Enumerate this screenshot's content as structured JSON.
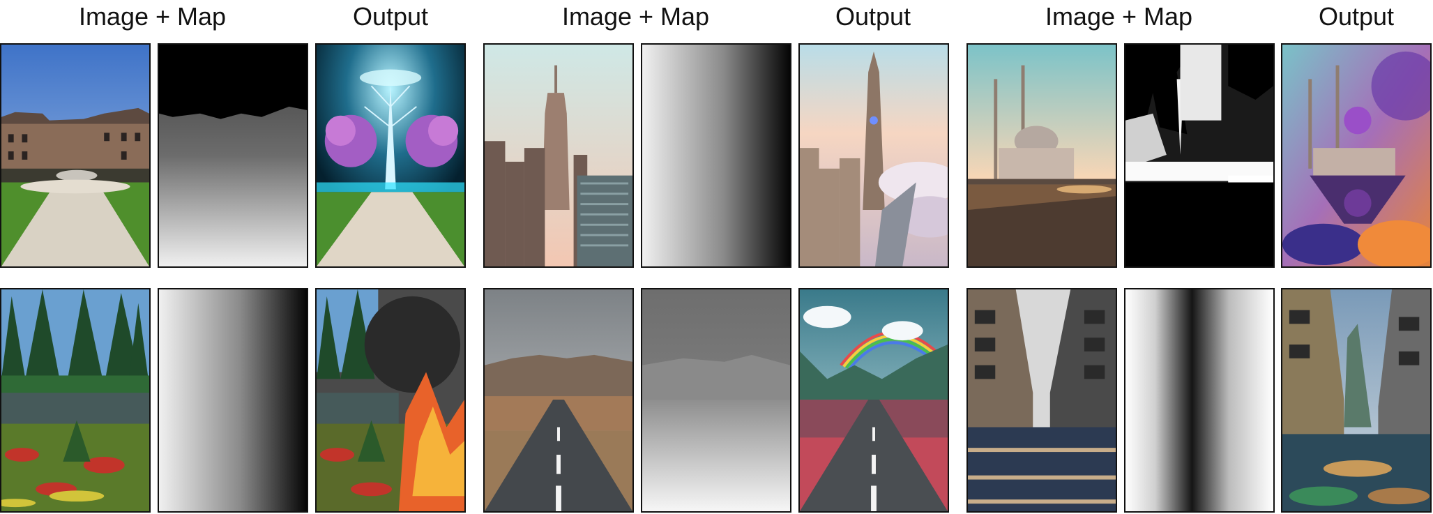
{
  "headers": {
    "g1_input": "Image + Map",
    "g1_output": "Output",
    "g2_input": "Image + Map",
    "g2_output": "Output",
    "g3_input": "Image + Map",
    "g3_output": "Output"
  },
  "tiles": [
    {
      "row": 1,
      "col": 1,
      "content": "place-courtyard-fountain-photo"
    },
    {
      "row": 1,
      "col": 2,
      "content": "depth-map-courtyard"
    },
    {
      "row": 1,
      "col": 3,
      "content": "glowing-tree-fantasy-garden"
    },
    {
      "row": 1,
      "col": 4,
      "content": "empire-state-city-photo"
    },
    {
      "row": 1,
      "col": 5,
      "content": "horizontal-gradient-map"
    },
    {
      "row": 1,
      "col": 6,
      "content": "fantasy-spire-above-clouds"
    },
    {
      "row": 1,
      "col": 7,
      "content": "mosque-waterfront-sunset-photo"
    },
    {
      "row": 1,
      "col": 8,
      "content": "mosque-mask-map"
    },
    {
      "row": 1,
      "col": 9,
      "content": "floating-mosque-cosmic-nebula"
    },
    {
      "row": 2,
      "col": 1,
      "content": "forest-lake-photo"
    },
    {
      "row": 2,
      "col": 2,
      "content": "horizontal-gradient-map"
    },
    {
      "row": 2,
      "col": 3,
      "content": "forest-fire-output"
    },
    {
      "row": 2,
      "col": 4,
      "content": "desert-road-photo"
    },
    {
      "row": 2,
      "col": 5,
      "content": "depth-map-road"
    },
    {
      "row": 2,
      "col": 6,
      "content": "rainbow-valley-road-output"
    },
    {
      "row": 2,
      "col": 7,
      "content": "market-street-photo"
    },
    {
      "row": 2,
      "col": 8,
      "content": "center-dark-gradient-map"
    },
    {
      "row": 2,
      "col": 9,
      "content": "fantasy-canyon-street-output"
    }
  ]
}
